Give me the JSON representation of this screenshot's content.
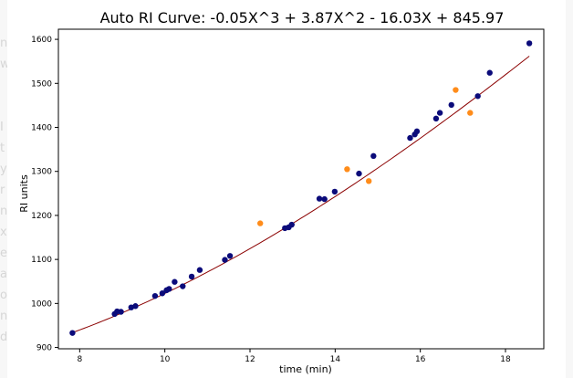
{
  "background_fragments": {
    "left": [
      "n",
      "w",
      "",
      "",
      "I",
      "t",
      "y",
      "r",
      "n",
      "x",
      "e",
      "a",
      "o",
      "n",
      "d"
    ],
    "right": [
      "",
      "",
      "",
      "",
      "",
      "",
      "",
      "",
      "",
      "",
      ""
    ]
  },
  "chart_data": {
    "type": "scatter",
    "title": "Auto RI Curve: -0.05X^3 + 3.87X^2 - 16.03X + 845.97",
    "xlabel": "time (min)",
    "ylabel": "RI units",
    "xlim": [
      7.5,
      18.9
    ],
    "ylim": [
      897,
      1623
    ],
    "xticks": [
      8,
      10,
      12,
      14,
      16,
      18
    ],
    "yticks": [
      900,
      1000,
      1100,
      1200,
      1300,
      1400,
      1500,
      1600
    ],
    "grid": false,
    "legend": null,
    "fit": {
      "coefficients": {
        "a": -0.05,
        "b": 3.87,
        "c": -16.03,
        "d": 845.97
      },
      "x_range": [
        7.83,
        18.56
      ],
      "color": "#8b0000"
    },
    "series": [
      {
        "color": "#0b0b7a",
        "points": [
          [
            7.83,
            933
          ],
          [
            8.82,
            976
          ],
          [
            8.88,
            982
          ],
          [
            8.97,
            981
          ],
          [
            9.21,
            991
          ],
          [
            9.31,
            994
          ],
          [
            9.77,
            1017
          ],
          [
            9.94,
            1023
          ],
          [
            10.04,
            1030
          ],
          [
            10.1,
            1033
          ],
          [
            10.23,
            1049
          ],
          [
            10.42,
            1039
          ],
          [
            10.63,
            1061
          ],
          [
            10.82,
            1076
          ],
          [
            11.41,
            1099
          ],
          [
            11.53,
            1108
          ],
          [
            12.82,
            1171
          ],
          [
            12.91,
            1173
          ],
          [
            12.98,
            1179
          ],
          [
            13.63,
            1238
          ],
          [
            13.75,
            1237
          ],
          [
            13.99,
            1254
          ],
          [
            14.56,
            1295
          ],
          [
            14.9,
            1335
          ],
          [
            15.76,
            1376
          ],
          [
            15.87,
            1384
          ],
          [
            15.92,
            1391
          ],
          [
            16.37,
            1420
          ],
          [
            16.46,
            1433
          ],
          [
            16.73,
            1451
          ],
          [
            17.35,
            1471
          ],
          [
            17.63,
            1524
          ],
          [
            18.56,
            1591
          ]
        ]
      },
      {
        "color": "#ff8c1a",
        "points": [
          [
            12.24,
            1182
          ],
          [
            14.28,
            1305
          ],
          [
            14.79,
            1278
          ],
          [
            16.83,
            1485
          ],
          [
            17.17,
            1433
          ]
        ]
      }
    ]
  }
}
